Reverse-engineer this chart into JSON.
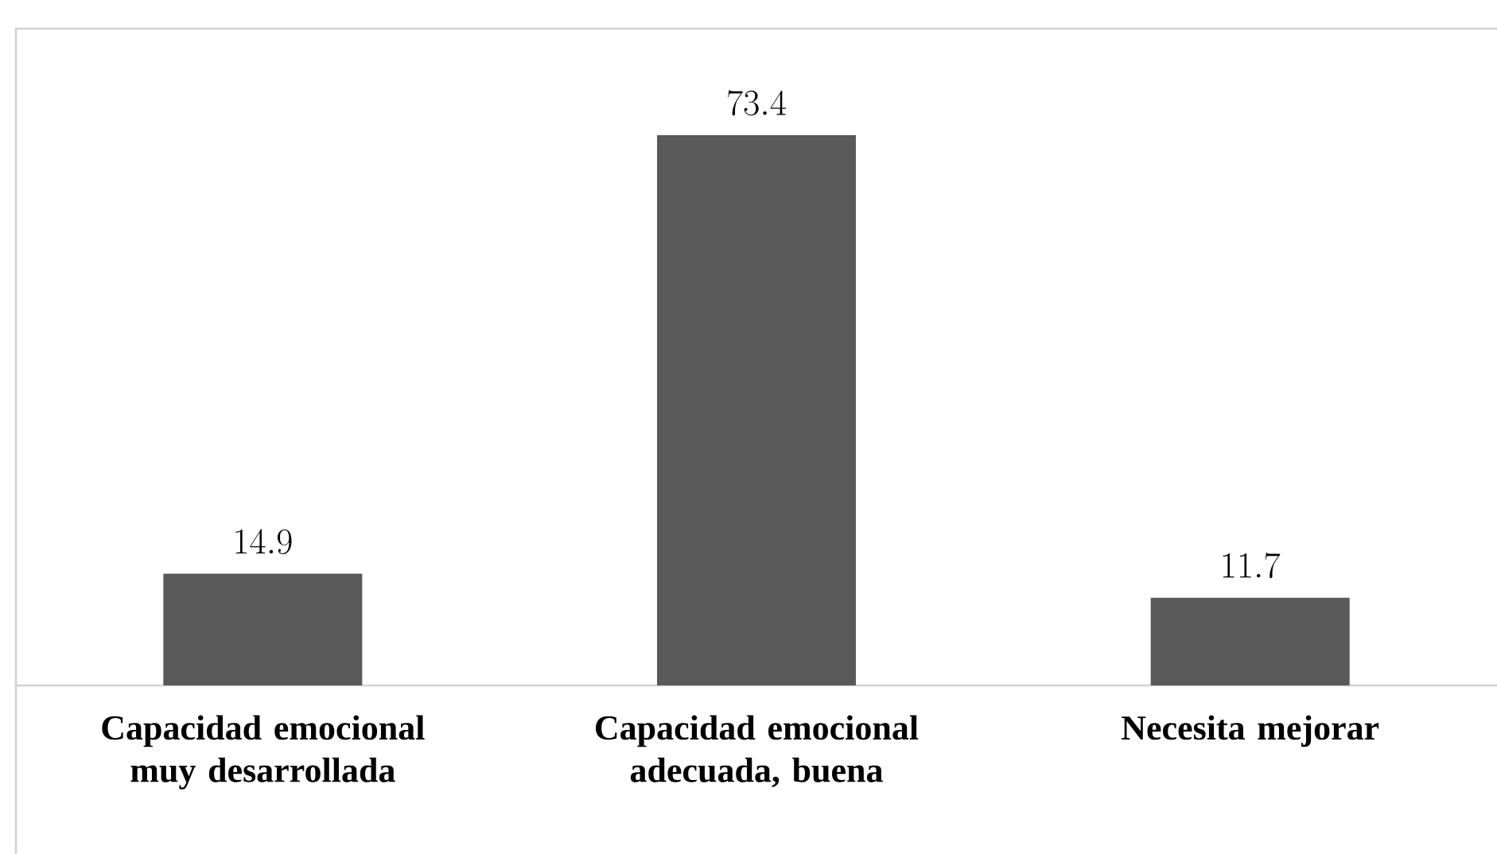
{
  "chart_data": {
    "type": "bar",
    "categories": [
      "**Capacidad emocional muy desarrollada**",
      "**Capacidad emocional adecuada, buena**",
      "**Necesita mejorar**"
    ],
    "values": [
      14.9,
      73.4,
      11.7
    ],
    "color": "#595959",
    "data_labels": true
  }
}
